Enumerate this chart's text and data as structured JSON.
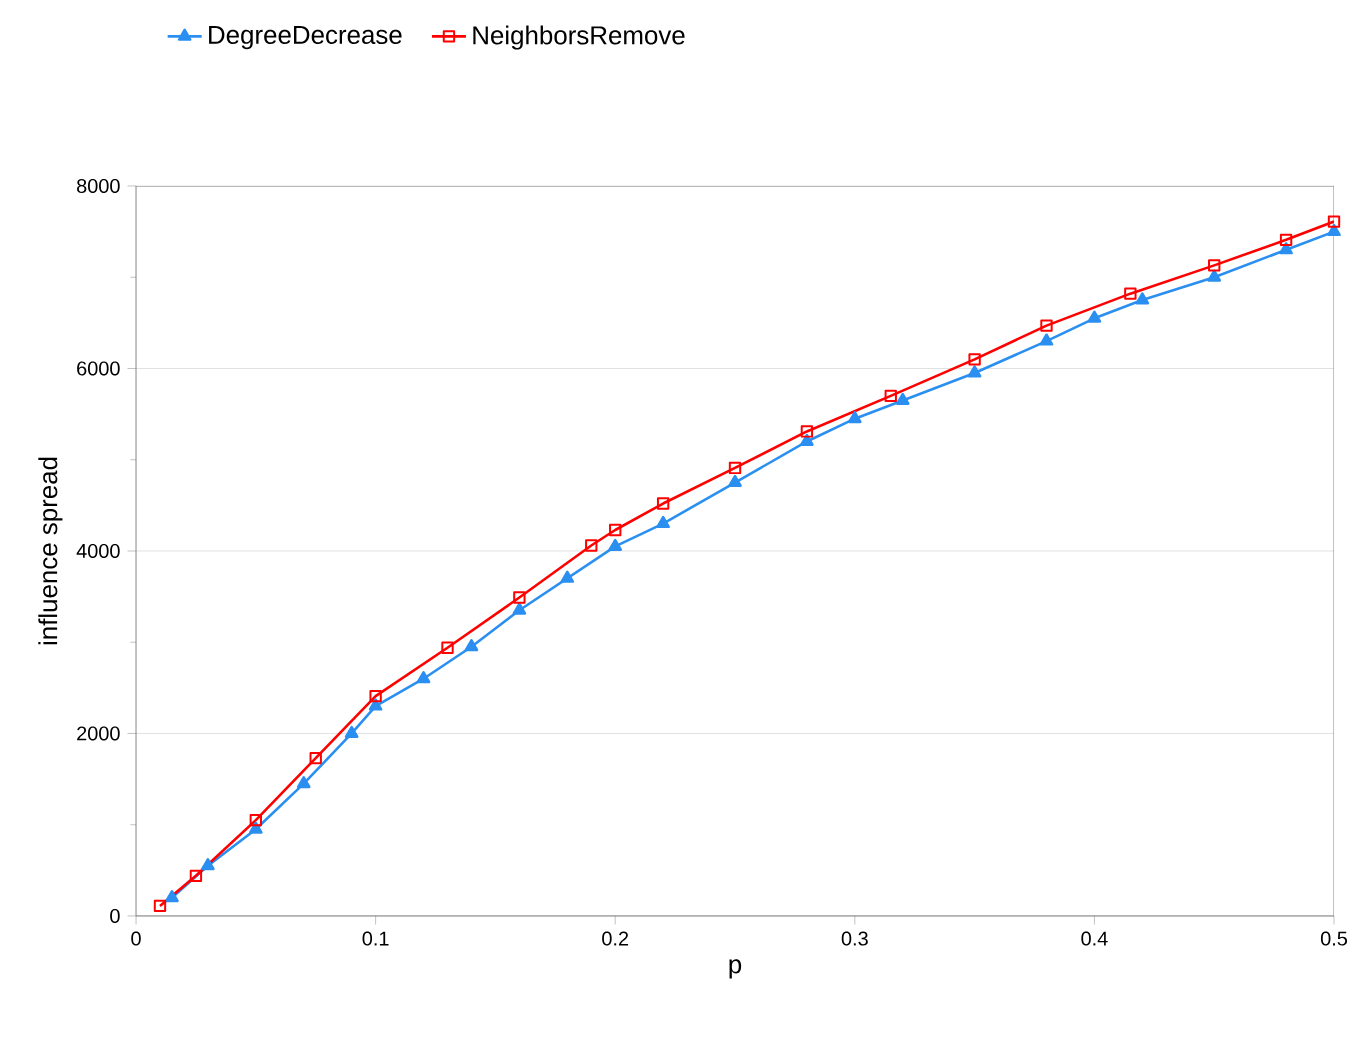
{
  "chart_data": {
    "type": "line",
    "xlabel": "p",
    "ylabel": "influence spread",
    "xlim": [
      0,
      0.5
    ],
    "ylim": [
      0,
      8000
    ],
    "xticks": [
      0,
      0.1,
      0.2,
      0.3,
      0.4,
      0.5
    ],
    "yticks": [
      0,
      {
        "value": 1000,
        "label": null
      },
      2000,
      {
        "value": 3000,
        "label": null
      },
      4000,
      {
        "value": 5000,
        "label": null
      },
      6000,
      {
        "value": 7000,
        "label": null
      },
      8000
    ],
    "grid": "y",
    "legend": "top left",
    "line_style": "solid",
    "series": [
      {
        "name": "DegreeDecrease",
        "color": "#2a8ff0",
        "marker": "triangle",
        "x": [
          0.015,
          0.03,
          0.05,
          0.07,
          0.09,
          0.1,
          0.12,
          0.14,
          0.16,
          0.18,
          0.2,
          0.22,
          0.25,
          0.28,
          0.3,
          0.32,
          0.35,
          0.38,
          0.4,
          0.42,
          0.45,
          0.48,
          0.5
        ],
        "values": [
          200,
          550,
          950,
          1450,
          2000,
          2300,
          2600,
          2950,
          3350,
          3700,
          4050,
          4300,
          4750,
          5200,
          5450,
          5650,
          5950,
          6300,
          6550,
          6750,
          7000,
          7300,
          7500
        ]
      },
      {
        "name": "NeighborsRemove",
        "color": "#ff0000",
        "marker": "square",
        "x": [
          0.01,
          0.025,
          0.05,
          0.075,
          0.1,
          0.13,
          0.16,
          0.19,
          0.2,
          0.22,
          0.25,
          0.28,
          0.315,
          0.35,
          0.38,
          0.415,
          0.45,
          0.48,
          0.5
        ],
        "values": [
          110,
          440,
          1050,
          1730,
          2410,
          2940,
          3490,
          4060,
          4230,
          4520,
          4910,
          5310,
          5700,
          6100,
          6470,
          6820,
          7130,
          7410,
          7610
        ]
      }
    ]
  }
}
